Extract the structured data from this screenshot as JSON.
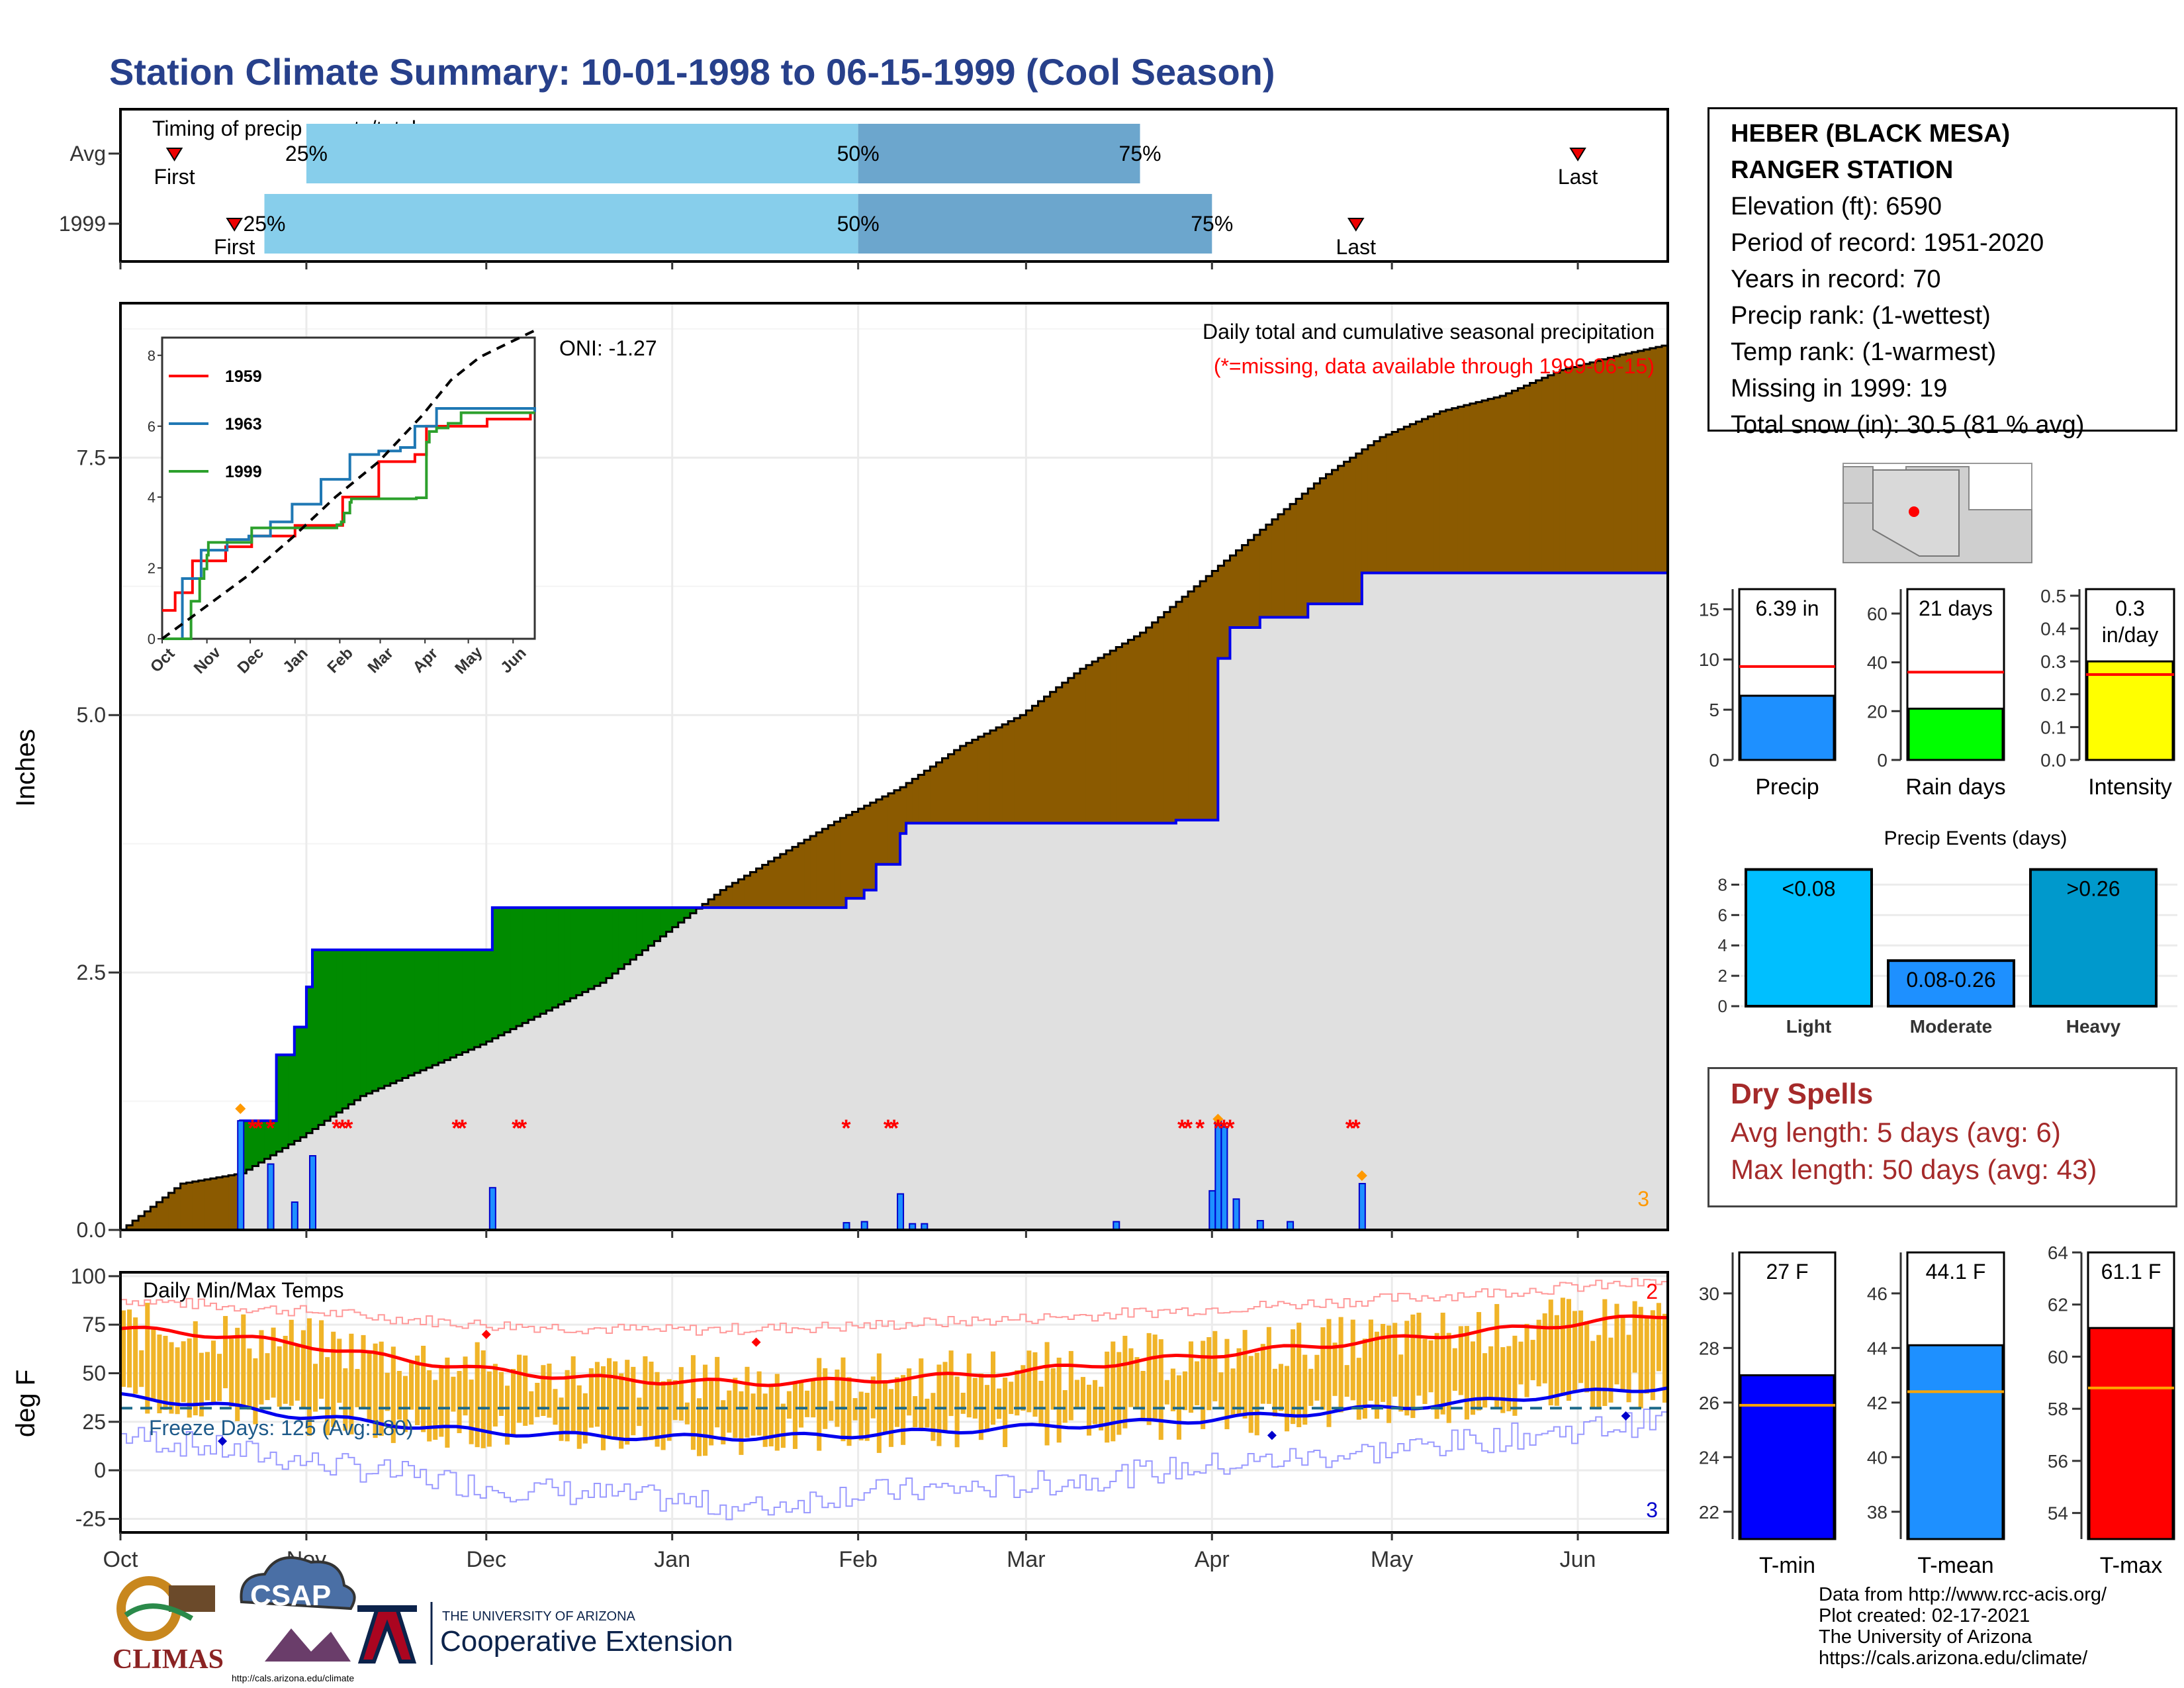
{
  "title": "Station Climate Summary: 10-01-1998 to 06-15-1999 (Cool Season)",
  "station": {
    "name_line1": "HEBER (BLACK MESA)",
    "name_line2": "RANGER STATION",
    "elevation": "Elevation (ft): 6590",
    "period": "Period of record: 1951-2020",
    "years": "Years in record: 70",
    "precip_rank": "Precip rank:  (1-wettest)",
    "temp_rank": "Temp rank:  (1-warmest)",
    "missing": "Missing in 1999: 19",
    "snow": "Total snow (in): 30.5 (81 % avg)"
  },
  "dry_spells": {
    "title": "Dry Spells",
    "avg": "Avg length: 5 days (avg: 6)",
    "max": "Max length: 50 days (avg: 43)"
  },
  "credits": {
    "line1": "Data from http://www.rcc-acis.org/",
    "line2": "Plot created: 02-17-2021",
    "line3": "The University of Arizona",
    "line4": "https://cals.arizona.edu/climate/"
  },
  "logos": {
    "climas": "CLIMAS",
    "csap": "CSAP",
    "csap_url": "http://cals.arizona.edu/climate",
    "ua_small": "THE UNIVERSITY OF ARIZONA",
    "ua_big": "Cooperative Extension"
  },
  "colors": {
    "title": "#27408b",
    "light_blue": "#87ceeb",
    "mid_blue": "#6ca6cd",
    "brown": "#8b5a00",
    "green": "#008b00",
    "grey_fill": "#e0e0e0",
    "cum_line": "#0000ee",
    "bar_blue": "#1e90ff",
    "orange": "#f0b428",
    "red": "#ff0000"
  },
  "chart_data": [
    {
      "id": "timing",
      "type": "bar",
      "title": "Timing of precip events/totals",
      "rows": [
        {
          "label": "Avg",
          "first": "Oct 10",
          "p25": "Nov 1",
          "p50": "Feb 1",
          "p75": "Mar 20",
          "last": "Jun 1",
          "first_label": "First",
          "last_label": "Last"
        },
        {
          "label": "1999",
          "first": "Oct 20",
          "p25": "Oct 25",
          "p50": "Feb 1",
          "p75": "Apr 1",
          "last": "Apr 25",
          "first_label": "First",
          "last_label": "Last"
        }
      ],
      "pct_labels": [
        "25%",
        "50%",
        "75%"
      ]
    },
    {
      "id": "precip",
      "type": "area",
      "title": "Daily total and cumulative seasonal precipitation",
      "subtitle": "(*=missing, data available through 1999-06-15)",
      "oni": "ONI: -1.27",
      "ylabel": "Inches",
      "yticks": [
        "0.0",
        "2.5",
        "5.0",
        "7.5"
      ],
      "ylim": [
        0,
        9.0
      ],
      "xticks": [
        "Oct",
        "Nov",
        "Dec",
        "Jan",
        "Feb",
        "Mar",
        "Apr",
        "May",
        "Jun"
      ],
      "corner_value": "3",
      "avg_cumulative": [
        [
          0,
          0
        ],
        [
          10,
          0.45
        ],
        [
          20,
          0.55
        ],
        [
          30,
          0.9
        ],
        [
          40,
          1.3
        ],
        [
          50,
          1.55
        ],
        [
          60,
          1.8
        ],
        [
          70,
          2.1
        ],
        [
          80,
          2.4
        ],
        [
          90,
          2.85
        ],
        [
          100,
          3.3
        ],
        [
          110,
          3.65
        ],
        [
          120,
          4.0
        ],
        [
          130,
          4.3
        ],
        [
          140,
          4.7
        ],
        [
          150,
          5.0
        ],
        [
          160,
          5.45
        ],
        [
          170,
          5.8
        ],
        [
          180,
          6.3
        ],
        [
          190,
          6.8
        ],
        [
          200,
          7.3
        ],
        [
          210,
          7.7
        ],
        [
          220,
          7.95
        ],
        [
          230,
          8.1
        ],
        [
          240,
          8.35
        ],
        [
          250,
          8.5
        ],
        [
          258,
          8.6
        ]
      ],
      "obs_cumulative": [
        [
          0,
          0
        ],
        [
          19,
          0
        ],
        [
          20,
          1.06
        ],
        [
          25,
          1.06
        ],
        [
          26,
          1.7
        ],
        [
          29,
          1.97
        ],
        [
          31,
          2.36
        ],
        [
          32,
          2.72
        ],
        [
          61,
          2.72
        ],
        [
          62,
          3.13
        ],
        [
          120,
          3.13
        ],
        [
          121,
          3.22
        ],
        [
          124,
          3.3
        ],
        [
          126,
          3.55
        ],
        [
          130,
          3.85
        ],
        [
          131,
          3.95
        ],
        [
          160,
          3.95
        ],
        [
          176,
          3.98
        ],
        [
          182,
          3.98
        ],
        [
          183,
          5.55
        ],
        [
          185,
          5.85
        ],
        [
          190,
          5.95
        ],
        [
          198,
          6.08
        ],
        [
          206,
          6.08
        ],
        [
          207,
          6.38
        ],
        [
          258,
          6.38
        ]
      ],
      "daily_precip": [
        [
          20,
          1.06
        ],
        [
          25,
          0.64
        ],
        [
          29,
          0.27
        ],
        [
          32,
          0.72
        ],
        [
          62,
          0.41
        ],
        [
          121,
          0.07
        ],
        [
          124,
          0.08
        ],
        [
          130,
          0.35
        ],
        [
          132,
          0.06
        ],
        [
          134,
          0.06
        ],
        [
          166,
          0.08
        ],
        [
          182,
          0.38
        ],
        [
          183,
          1.06
        ],
        [
          184,
          1.0
        ],
        [
          186,
          0.3
        ],
        [
          190,
          0.09
        ],
        [
          195,
          0.08
        ],
        [
          207,
          0.45
        ]
      ],
      "missing_days": [
        22,
        23,
        25,
        36,
        37,
        38,
        56,
        57,
        66,
        67,
        121,
        128,
        129,
        177,
        178,
        180,
        183,
        184,
        185,
        205,
        206
      ]
    },
    {
      "id": "inset",
      "type": "line",
      "xticks": [
        "Oct",
        "Nov",
        "Dec",
        "Jan",
        "Feb",
        "Mar",
        "Apr",
        "May",
        "Jun"
      ],
      "yticks": [
        "0",
        "2",
        "4",
        "6",
        "8"
      ],
      "ylim": [
        0,
        8.5
      ],
      "series": [
        {
          "name": "1959",
          "color": "#ff0000",
          "values": [
            [
              0,
              0.8
            ],
            [
              8,
              0.8
            ],
            [
              9,
              1.3
            ],
            [
              20,
              1.3
            ],
            [
              21,
              2.2
            ],
            [
              40,
              2.2
            ],
            [
              44,
              2.6
            ],
            [
              60,
              2.6
            ],
            [
              62,
              2.9
            ],
            [
              90,
              2.9
            ],
            [
              92,
              3.2
            ],
            [
              120,
              3.2
            ],
            [
              125,
              4.0
            ],
            [
              145,
              4.0
            ],
            [
              150,
              5.0
            ],
            [
              175,
              5.2
            ],
            [
              183,
              6.0
            ],
            [
              225,
              6.2
            ],
            [
              255,
              6.4
            ]
          ]
        },
        {
          "name": "1963",
          "color": "#1f78b4",
          "values": [
            [
              0,
              0
            ],
            [
              12,
              0
            ],
            [
              14,
              1.7
            ],
            [
              25,
              1.7
            ],
            [
              27,
              2.5
            ],
            [
              45,
              2.8
            ],
            [
              60,
              2.9
            ],
            [
              75,
              3.3
            ],
            [
              90,
              3.8
            ],
            [
              110,
              4.5
            ],
            [
              130,
              5.2
            ],
            [
              150,
              5.3
            ],
            [
              165,
              5.4
            ],
            [
              175,
              6.0
            ],
            [
              190,
              6.5
            ],
            [
              215,
              6.5
            ],
            [
              258,
              6.4
            ]
          ]
        },
        {
          "name": "1999",
          "color": "#2ca02c",
          "values": [
            [
              0,
              0
            ],
            [
              19,
              0
            ],
            [
              20,
              1.06
            ],
            [
              25,
              1.06
            ],
            [
              26,
              1.7
            ],
            [
              29,
              1.97
            ],
            [
              31,
              2.36
            ],
            [
              32,
              2.72
            ],
            [
              61,
              2.72
            ],
            [
              62,
              3.13
            ],
            [
              120,
              3.13
            ],
            [
              121,
              3.22
            ],
            [
              124,
              3.3
            ],
            [
              126,
              3.55
            ],
            [
              130,
              3.85
            ],
            [
              131,
              3.95
            ],
            [
              160,
              3.95
            ],
            [
              176,
              3.98
            ],
            [
              182,
              3.98
            ],
            [
              183,
              5.55
            ],
            [
              185,
              5.85
            ],
            [
              190,
              5.95
            ],
            [
              198,
              6.08
            ],
            [
              206,
              6.08
            ],
            [
              207,
              6.38
            ],
            [
              258,
              6.38
            ]
          ]
        },
        {
          "name": "avg",
          "color": "#000000",
          "dashed": true,
          "values": [
            [
              0,
              0
            ],
            [
              30,
              0.9
            ],
            [
              60,
              1.8
            ],
            [
              90,
              2.85
            ],
            [
              120,
              4.0
            ],
            [
              150,
              5.0
            ],
            [
              180,
              6.3
            ],
            [
              200,
              7.3
            ],
            [
              220,
              7.95
            ],
            [
              240,
              8.35
            ],
            [
              258,
              8.7
            ]
          ]
        }
      ]
    },
    {
      "id": "temps",
      "type": "line",
      "title": "Daily Min/Max Temps",
      "ylabel": "deg F",
      "yticks": [
        "-25",
        "0",
        "25",
        "50",
        "75",
        "100"
      ],
      "ylim": [
        -32,
        102
      ],
      "freeze_text": "Freeze Days: 125 (Avg:180)",
      "freeze_line": 32,
      "corner_top": "2",
      "corner_bottom": "3",
      "avg_max": [
        [
          0,
          73
        ],
        [
          15,
          70
        ],
        [
          30,
          65
        ],
        [
          45,
          58
        ],
        [
          60,
          52
        ],
        [
          75,
          48
        ],
        [
          90,
          46
        ],
        [
          105,
          45
        ],
        [
          120,
          46
        ],
        [
          135,
          48
        ],
        [
          150,
          51
        ],
        [
          165,
          55
        ],
        [
          180,
          59
        ],
        [
          195,
          63
        ],
        [
          210,
          67
        ],
        [
          225,
          71
        ],
        [
          240,
          75
        ],
        [
          258,
          80
        ]
      ],
      "avg_min": [
        [
          0,
          38
        ],
        [
          15,
          34
        ],
        [
          30,
          28
        ],
        [
          45,
          24
        ],
        [
          60,
          20
        ],
        [
          75,
          18
        ],
        [
          90,
          17
        ],
        [
          105,
          17
        ],
        [
          120,
          18
        ],
        [
          135,
          20
        ],
        [
          150,
          22
        ],
        [
          165,
          24
        ],
        [
          180,
          26
        ],
        [
          195,
          29
        ],
        [
          210,
          32
        ],
        [
          225,
          35
        ],
        [
          240,
          39
        ],
        [
          258,
          43
        ]
      ],
      "record_max": [
        [
          0,
          88
        ],
        [
          30,
          82
        ],
        [
          60,
          75
        ],
        [
          90,
          72
        ],
        [
          120,
          74
        ],
        [
          150,
          78
        ],
        [
          180,
          83
        ],
        [
          210,
          88
        ],
        [
          240,
          94
        ],
        [
          258,
          97
        ]
      ],
      "record_min": [
        [
          0,
          18
        ],
        [
          30,
          5
        ],
        [
          60,
          -8
        ],
        [
          90,
          -15
        ],
        [
          105,
          -20
        ],
        [
          120,
          -12
        ],
        [
          150,
          -8
        ],
        [
          180,
          2
        ],
        [
          210,
          10
        ],
        [
          240,
          20
        ],
        [
          258,
          26
        ]
      ]
    },
    {
      "id": "precip_stats",
      "type": "bar",
      "bars": [
        {
          "label": "Precip",
          "value": 6.39,
          "text": "6.39 in",
          "avg": 9.3,
          "ymax": 17,
          "yticks": [
            "0",
            "5",
            "10",
            "15"
          ],
          "color": "#1e90ff"
        },
        {
          "label": "Rain days",
          "value": 21,
          "text": "21 days",
          "avg": 36,
          "ymax": 70,
          "yticks": [
            "0",
            "20",
            "40",
            "60"
          ],
          "color": "#00ff00"
        },
        {
          "label": "Intensity",
          "value": 0.3,
          "text": "0.3\nin/day",
          "avg": 0.26,
          "ymax": 0.52,
          "yticks": [
            "0.0",
            "0.1",
            "0.2",
            "0.3",
            "0.4",
            "0.5"
          ],
          "color": "#ffff00"
        }
      ]
    },
    {
      "id": "precip_events",
      "type": "bar",
      "title": "Precip Events (days)",
      "categories": [
        "Light",
        "Moderate",
        "Heavy"
      ],
      "values": [
        9,
        3,
        9
      ],
      "bar_labels": [
        "<0.08",
        "0.08-0.26",
        ">0.26"
      ],
      "colors": [
        "#00bfff",
        "#1e90ff",
        "#0099cc"
      ],
      "yticks": [
        "0",
        "2",
        "4",
        "6",
        "8"
      ],
      "ylim": [
        0,
        9.5
      ]
    },
    {
      "id": "temp_stats",
      "type": "bar",
      "bars": [
        {
          "label": "T-min",
          "value": 27.0,
          "text": "27 F",
          "avg": 25.9,
          "ylim": [
            21,
            31.5
          ],
          "yticks": [
            "22",
            "24",
            "26",
            "28",
            "30"
          ],
          "color": "#0000ff"
        },
        {
          "label": "T-mean",
          "value": 44.1,
          "text": "44.1 F",
          "avg": 42.4,
          "ylim": [
            37,
            47.5
          ],
          "yticks": [
            "38",
            "40",
            "42",
            "44",
            "46"
          ],
          "color": "#1e90ff"
        },
        {
          "label": "T-max",
          "value": 61.1,
          "text": "61.1 F",
          "avg": 58.8,
          "ylim": [
            53,
            64
          ],
          "yticks": [
            "54",
            "56",
            "58",
            "60",
            "62",
            "64"
          ],
          "color": "#ff0000"
        }
      ]
    }
  ]
}
